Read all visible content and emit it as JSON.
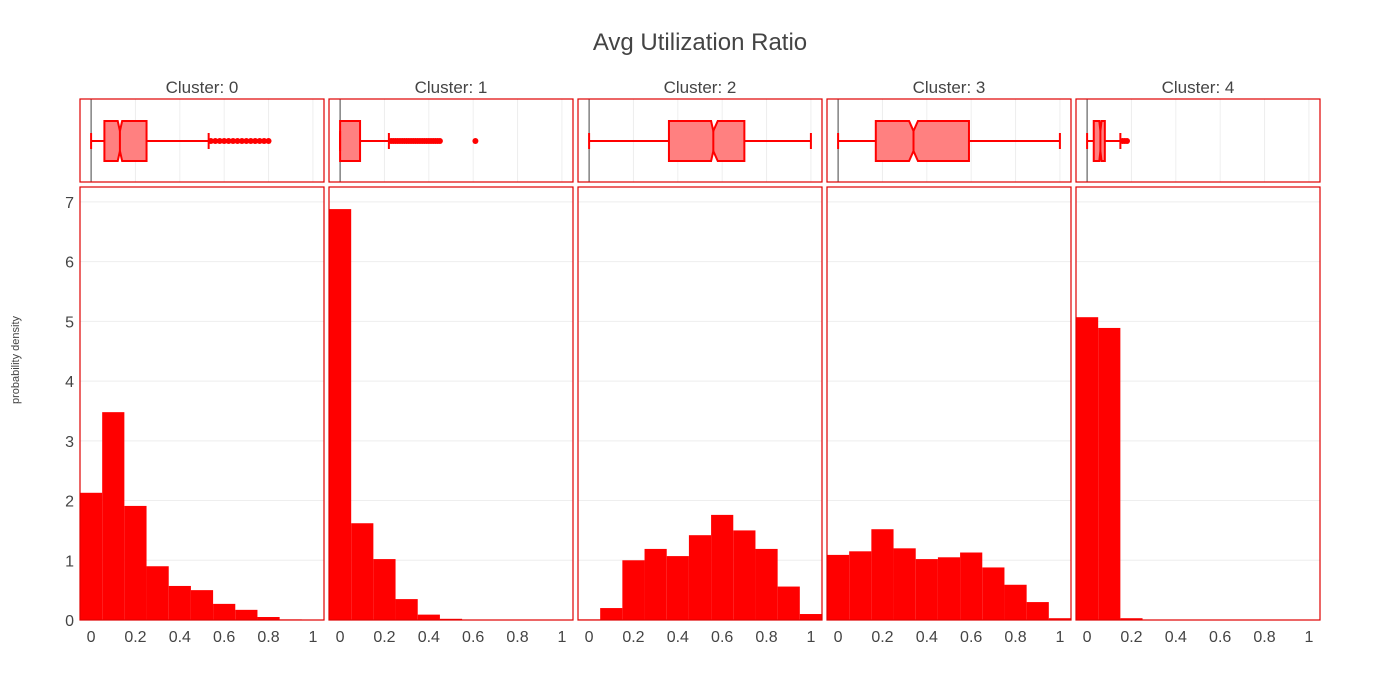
{
  "chart_data": {
    "type": "histogram",
    "title": "Avg Utilization Ratio",
    "ylabel": "probability density",
    "xlabel": "",
    "color": "#ff0000",
    "box_fill": "#ff8080",
    "grid_color": "#eeeeee",
    "zero_line_color": "#444444",
    "xlim": [
      -0.05,
      1.05
    ],
    "ylim": [
      0,
      7.25
    ],
    "x_ticks": [
      0,
      0.2,
      0.4,
      0.6,
      0.8,
      1
    ],
    "x_tick_labels": [
      "0",
      "0.2",
      "0.4",
      "0.6",
      "0.8",
      "1"
    ],
    "y_ticks": [
      0,
      1,
      2,
      3,
      4,
      5,
      6,
      7
    ],
    "y_tick_labels": [
      "0",
      "1",
      "2",
      "3",
      "4",
      "5",
      "6",
      "7"
    ],
    "grid": true,
    "panels": [
      {
        "label": "Cluster: 0",
        "bin_edges": [
          -0.05,
          0.05,
          0.15,
          0.25,
          0.35,
          0.45,
          0.55,
          0.65,
          0.75,
          0.85,
          0.95,
          1.05
        ],
        "density": [
          2.13,
          3.48,
          1.91,
          0.9,
          0.57,
          0.5,
          0.27,
          0.17,
          0.05,
          0.01,
          0
        ],
        "box": {
          "lowerfence": 0.0,
          "q1": 0.06,
          "median": 0.13,
          "q3": 0.25,
          "upperfence": 0.53,
          "notch_low": 0.12,
          "notch_high": 0.14,
          "outliers": [
            0.54,
            0.56,
            0.58,
            0.6,
            0.62,
            0.64,
            0.66,
            0.68,
            0.7,
            0.72,
            0.74,
            0.76,
            0.78,
            0.8
          ]
        }
      },
      {
        "label": "Cluster: 1",
        "bin_edges": [
          -0.05,
          0.05,
          0.15,
          0.25,
          0.35,
          0.45,
          0.55,
          0.65,
          0.75,
          0.85,
          0.95,
          1.05
        ],
        "density": [
          6.88,
          1.62,
          1.02,
          0.35,
          0.09,
          0.02,
          0,
          0,
          0,
          0,
          0
        ],
        "box": {
          "lowerfence": 0.0,
          "q1": 0.0,
          "median": 0.0,
          "q3": 0.09,
          "upperfence": 0.22,
          "notch_low": 0.0,
          "notch_high": 0.0,
          "outliers": [
            0.23,
            0.24,
            0.25,
            0.26,
            0.27,
            0.28,
            0.29,
            0.3,
            0.31,
            0.32,
            0.33,
            0.34,
            0.35,
            0.36,
            0.37,
            0.38,
            0.39,
            0.4,
            0.41,
            0.42,
            0.43,
            0.44,
            0.45,
            0.61
          ]
        }
      },
      {
        "label": "Cluster: 2",
        "bin_edges": [
          -0.05,
          0.05,
          0.15,
          0.25,
          0.35,
          0.45,
          0.55,
          0.65,
          0.75,
          0.85,
          0.95,
          1.05
        ],
        "density": [
          0.01,
          0.2,
          1.0,
          1.19,
          1.07,
          1.42,
          1.76,
          1.5,
          1.19,
          0.56,
          0.1
        ],
        "box": {
          "lowerfence": 0.0,
          "q1": 0.36,
          "median": 0.56,
          "q3": 0.7,
          "upperfence": 1.0,
          "notch_low": 0.55,
          "notch_high": 0.58,
          "outliers": []
        }
      },
      {
        "label": "Cluster: 3",
        "bin_edges": [
          -0.05,
          0.05,
          0.15,
          0.25,
          0.35,
          0.45,
          0.55,
          0.65,
          0.75,
          0.85,
          0.95,
          1.05
        ],
        "density": [
          1.09,
          1.15,
          1.52,
          1.2,
          1.02,
          1.05,
          1.13,
          0.88,
          0.59,
          0.3,
          0.03
        ],
        "box": {
          "lowerfence": 0.0,
          "q1": 0.17,
          "median": 0.34,
          "q3": 0.59,
          "upperfence": 1.0,
          "notch_low": 0.32,
          "notch_high": 0.36,
          "outliers": []
        }
      },
      {
        "label": "Cluster: 4",
        "bin_edges": [
          -0.05,
          0.05,
          0.15,
          0.25,
          0.35,
          0.45,
          0.55,
          0.65,
          0.75,
          0.85,
          0.95,
          1.05
        ],
        "density": [
          5.07,
          4.89,
          0.03,
          0,
          0,
          0,
          0,
          0,
          0,
          0,
          0
        ],
        "box": {
          "lowerfence": 0.0,
          "q1": 0.03,
          "median": 0.06,
          "q3": 0.08,
          "upperfence": 0.15,
          "notch_low": 0.055,
          "notch_high": 0.065,
          "outliers": [
            0.16,
            0.17,
            0.18
          ]
        }
      }
    ]
  }
}
